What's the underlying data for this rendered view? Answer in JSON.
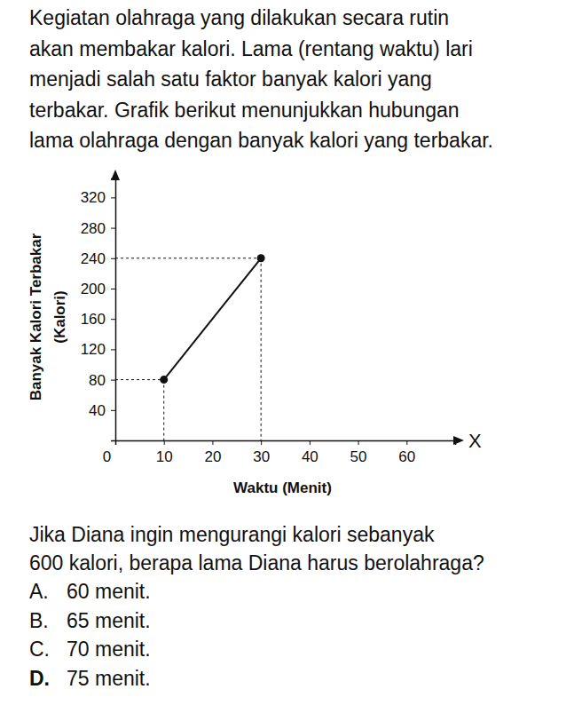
{
  "intro": [
    "Kegiatan olahraga yang dilakukan secara rutin",
    "akan membakar kalori. Lama (rentang waktu) lari",
    "menjadi salah satu faktor banyak kalori yang",
    "terbakar. Grafik berikut menunjukkan hubungan",
    "lama olahraga dengan banyak kalori yang terbakar."
  ],
  "chart_data": {
    "type": "line",
    "xlabel": "Waktu (Menit)",
    "ylabel": [
      "Banyak Kalori Terbakar",
      "(Kalori)"
    ],
    "annotations": [
      "X"
    ],
    "x": [
      10,
      30
    ],
    "values": [
      80,
      240
    ],
    "color": "#111111",
    "marker": "circle",
    "line_style": "solid",
    "xlim": [
      0,
      70
    ],
    "xticks": [
      0,
      10,
      20,
      30,
      40,
      50,
      60
    ],
    "ylim": [
      0,
      345
    ],
    "yticks": [
      40,
      80,
      120,
      160,
      200,
      240,
      280,
      320
    ],
    "grid": false
  },
  "question": [
    "Jika Diana ingin mengurangi kalori sebanyak",
    "600 kalori, berapa lama Diana harus berolahraga?"
  ],
  "options": [
    {
      "letter": "A.",
      "text": "60 menit."
    },
    {
      "letter": "B.",
      "text": "65 menit."
    },
    {
      "letter": "C.",
      "text": "70 menit."
    },
    {
      "letter": "D.",
      "text": "75 menit."
    }
  ]
}
